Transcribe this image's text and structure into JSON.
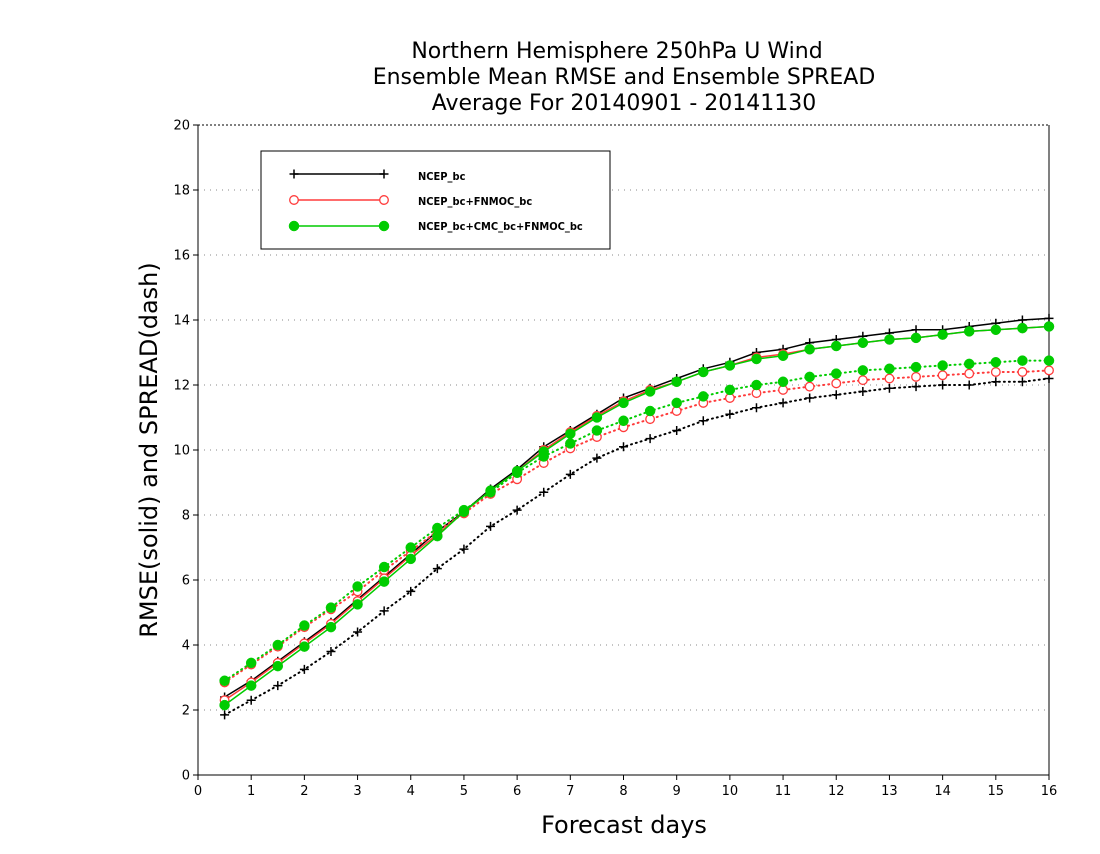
{
  "chart_data": {
    "type": "line",
    "title": [
      "Northern Hemisphere 250hPa U Wind",
      "Ensemble Mean RMSE and Ensemble SPREAD",
      "Average For 20140901 - 20141130"
    ],
    "xlabel": "Forecast days",
    "ylabel": "RMSE(solid) and SPREAD(dash)",
    "xlim": [
      0,
      16
    ],
    "ylim": [
      0,
      20
    ],
    "xticks": [
      0,
      1,
      2,
      3,
      4,
      5,
      6,
      7,
      8,
      9,
      10,
      11,
      12,
      13,
      14,
      15,
      16
    ],
    "yticks": [
      0,
      2,
      4,
      6,
      8,
      10,
      12,
      14,
      16,
      18,
      20
    ],
    "grid": "horizontal dotted",
    "legend": "top-left",
    "x": [
      0.5,
      1,
      1.5,
      2,
      2.5,
      3,
      3.5,
      4,
      4.5,
      5,
      5.5,
      6,
      6.5,
      7,
      7.5,
      8,
      8.5,
      9,
      9.5,
      10,
      10.5,
      11,
      11.5,
      12,
      12.5,
      13,
      13.5,
      14,
      14.5,
      15,
      15.5,
      16
    ],
    "series": [
      {
        "name": "NCEP_bc",
        "color": "#000000",
        "marker": "plus",
        "rmse": [
          2.4,
          2.9,
          3.5,
          4.1,
          4.7,
          5.4,
          6.1,
          6.8,
          7.5,
          8.1,
          8.8,
          9.4,
          10.1,
          10.6,
          11.1,
          11.6,
          11.9,
          12.2,
          12.5,
          12.7,
          13.0,
          13.1,
          13.3,
          13.4,
          13.5,
          13.6,
          13.7,
          13.7,
          13.8,
          13.9,
          14.0,
          14.05
        ],
        "spread": [
          1.85,
          2.3,
          2.75,
          3.25,
          3.8,
          4.4,
          5.05,
          5.65,
          6.35,
          6.95,
          7.65,
          8.15,
          8.7,
          9.25,
          9.75,
          10.1,
          10.35,
          10.6,
          10.9,
          11.1,
          11.3,
          11.45,
          11.6,
          11.7,
          11.8,
          11.9,
          11.95,
          12.0,
          12.0,
          12.1,
          12.1,
          12.2
        ]
      },
      {
        "name": "NCEP_bc+FNMOC_bc",
        "color": "#ff3b3b",
        "marker": "open-circle",
        "rmse": [
          2.3,
          2.85,
          3.45,
          4.05,
          4.65,
          5.35,
          6.05,
          6.75,
          7.4,
          8.1,
          8.75,
          9.35,
          10.0,
          10.55,
          11.05,
          11.5,
          11.85,
          12.1,
          12.4,
          12.6,
          12.85,
          12.95,
          13.1,
          13.2,
          13.3,
          13.4,
          13.45,
          13.55,
          13.65,
          13.7,
          13.75,
          13.8
        ],
        "spread": [
          2.85,
          3.4,
          3.95,
          4.55,
          5.1,
          5.65,
          6.3,
          6.9,
          7.5,
          8.05,
          8.65,
          9.1,
          9.6,
          10.05,
          10.4,
          10.7,
          10.95,
          11.2,
          11.45,
          11.6,
          11.75,
          11.85,
          11.95,
          12.05,
          12.15,
          12.2,
          12.25,
          12.3,
          12.35,
          12.4,
          12.4,
          12.45
        ]
      },
      {
        "name": "NCEP_bc+CMC_bc+FNMOC_bc",
        "color": "#00cc00",
        "marker": "filled-circle",
        "rmse": [
          2.15,
          2.75,
          3.35,
          3.95,
          4.55,
          5.25,
          5.95,
          6.65,
          7.35,
          8.1,
          8.75,
          9.35,
          9.95,
          10.5,
          11.0,
          11.45,
          11.8,
          12.1,
          12.4,
          12.6,
          12.8,
          12.9,
          13.1,
          13.2,
          13.3,
          13.4,
          13.45,
          13.55,
          13.65,
          13.7,
          13.75,
          13.8
        ],
        "spread": [
          2.9,
          3.45,
          4.0,
          4.6,
          5.15,
          5.8,
          6.4,
          7.0,
          7.6,
          8.15,
          8.7,
          9.3,
          9.8,
          10.2,
          10.6,
          10.9,
          11.2,
          11.45,
          11.65,
          11.85,
          12.0,
          12.1,
          12.25,
          12.35,
          12.45,
          12.5,
          12.55,
          12.6,
          12.65,
          12.7,
          12.75,
          12.75
        ]
      }
    ]
  }
}
